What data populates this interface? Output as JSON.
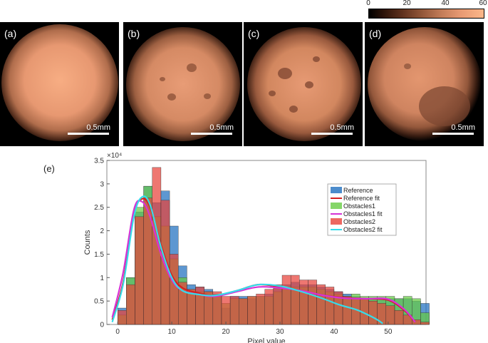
{
  "panels": [
    {
      "label": "(a)",
      "scale": "0.5mm"
    },
    {
      "label": "(b)",
      "scale": "0.5mm"
    },
    {
      "label": "(c)",
      "scale": "0.5mm"
    },
    {
      "label": "(d)",
      "scale": "0.5mm"
    }
  ],
  "colorbar": {
    "ticks": [
      "0",
      "20",
      "40",
      "60"
    ],
    "min": 0,
    "max": 60
  },
  "chart_label": "(e)",
  "chart_data": {
    "type": "bar",
    "title": "",
    "xlabel": "Pixel value",
    "ylabel": "Counts",
    "y_exponent": "×10⁴",
    "xlim": [
      -2,
      57
    ],
    "ylim": [
      0,
      3.5
    ],
    "xticks": [
      0,
      10,
      20,
      30,
      40,
      50
    ],
    "yticks": [
      0,
      0.5,
      1,
      1.5,
      2,
      2.5,
      3,
      3.5
    ],
    "bin_width": 1.6,
    "bin_start": 0,
    "series": [
      {
        "name": "Reference",
        "color": "#1f6fbf",
        "values": [
          0.35,
          1.0,
          2.4,
          2.95,
          2.6,
          2.85,
          2.1,
          1.25,
          0.85,
          0.8,
          0.75,
          0.65,
          0.35,
          0.6,
          0.6,
          0.55,
          0.6,
          0.65,
          0.8,
          0.85,
          0.9,
          0.85,
          0.85,
          0.8,
          0.75,
          0.7,
          0.65,
          0.6,
          0.55,
          0.55,
          0.55,
          0.55,
          0.55,
          0.55,
          0.5,
          0.45
        ]
      },
      {
        "name": "Obstacles1",
        "color": "#66cc44",
        "values": [
          0.2,
          1.0,
          2.5,
          2.95,
          2.3,
          2.1,
          1.4,
          1.0,
          0.75,
          0.7,
          0.7,
          0.6,
          0.45,
          0.55,
          0.55,
          0.6,
          0.6,
          0.6,
          0.7,
          0.8,
          0.8,
          0.8,
          0.8,
          0.75,
          0.7,
          0.65,
          0.6,
          0.65,
          0.6,
          0.6,
          0.6,
          0.6,
          0.55,
          0.6,
          0.55,
          0.25
        ]
      },
      {
        "name": "Obstacles2",
        "color": "#e8423a",
        "values": [
          0.3,
          0.85,
          2.3,
          2.7,
          3.35,
          2.65,
          1.5,
          0.9,
          0.75,
          0.8,
          0.7,
          0.7,
          0.6,
          0.6,
          0.55,
          0.6,
          0.65,
          0.75,
          0.85,
          1.05,
          1.05,
          0.95,
          0.95,
          0.85,
          0.8,
          0.7,
          0.6,
          0.55,
          0.55,
          0.5,
          0.45,
          0.4,
          0.3,
          0.2,
          0.1,
          0.05
        ]
      }
    ],
    "fits": [
      {
        "name": "Reference fit",
        "color": "#d42020",
        "x": [
          -1,
          1,
          3,
          4.5,
          6,
          8,
          10,
          12,
          15,
          18,
          22,
          26,
          30,
          34,
          38,
          42,
          46,
          50,
          53,
          55
        ],
        "y": [
          0.1,
          0.9,
          2.35,
          2.68,
          2.5,
          1.7,
          1.05,
          0.78,
          0.67,
          0.62,
          0.72,
          0.85,
          0.8,
          0.72,
          0.62,
          0.57,
          0.55,
          0.52,
          0.3,
          0.05
        ]
      },
      {
        "name": "Obstacles1 fit",
        "color": "#d633d6",
        "x": [
          -1,
          1,
          3,
          4.5,
          6,
          8,
          10,
          12,
          15,
          18,
          22,
          26,
          30,
          34,
          38,
          42,
          46,
          50,
          53,
          55
        ],
        "y": [
          0.15,
          1.1,
          2.45,
          2.62,
          2.3,
          1.5,
          0.95,
          0.72,
          0.64,
          0.6,
          0.7,
          0.8,
          0.78,
          0.72,
          0.62,
          0.56,
          0.55,
          0.54,
          0.32,
          0.05
        ]
      },
      {
        "name": "Obstacles2 fit",
        "color": "#35dcea",
        "x": [
          -1,
          1,
          3,
          4.5,
          6,
          8,
          10,
          12,
          15,
          18,
          22,
          26,
          30,
          34,
          38,
          41,
          44,
          46,
          48,
          49
        ],
        "y": [
          0.05,
          0.85,
          2.3,
          2.72,
          2.55,
          1.65,
          1.0,
          0.72,
          0.64,
          0.62,
          0.72,
          0.85,
          0.82,
          0.7,
          0.55,
          0.42,
          0.32,
          0.22,
          0.1,
          0.02
        ]
      }
    ],
    "legend_order": [
      "Reference",
      "Reference fit",
      "Obstacles1",
      "Obstacles1 fit",
      "Obstacles2",
      "Obstacles2 fit"
    ],
    "legend_position": "top-right"
  }
}
